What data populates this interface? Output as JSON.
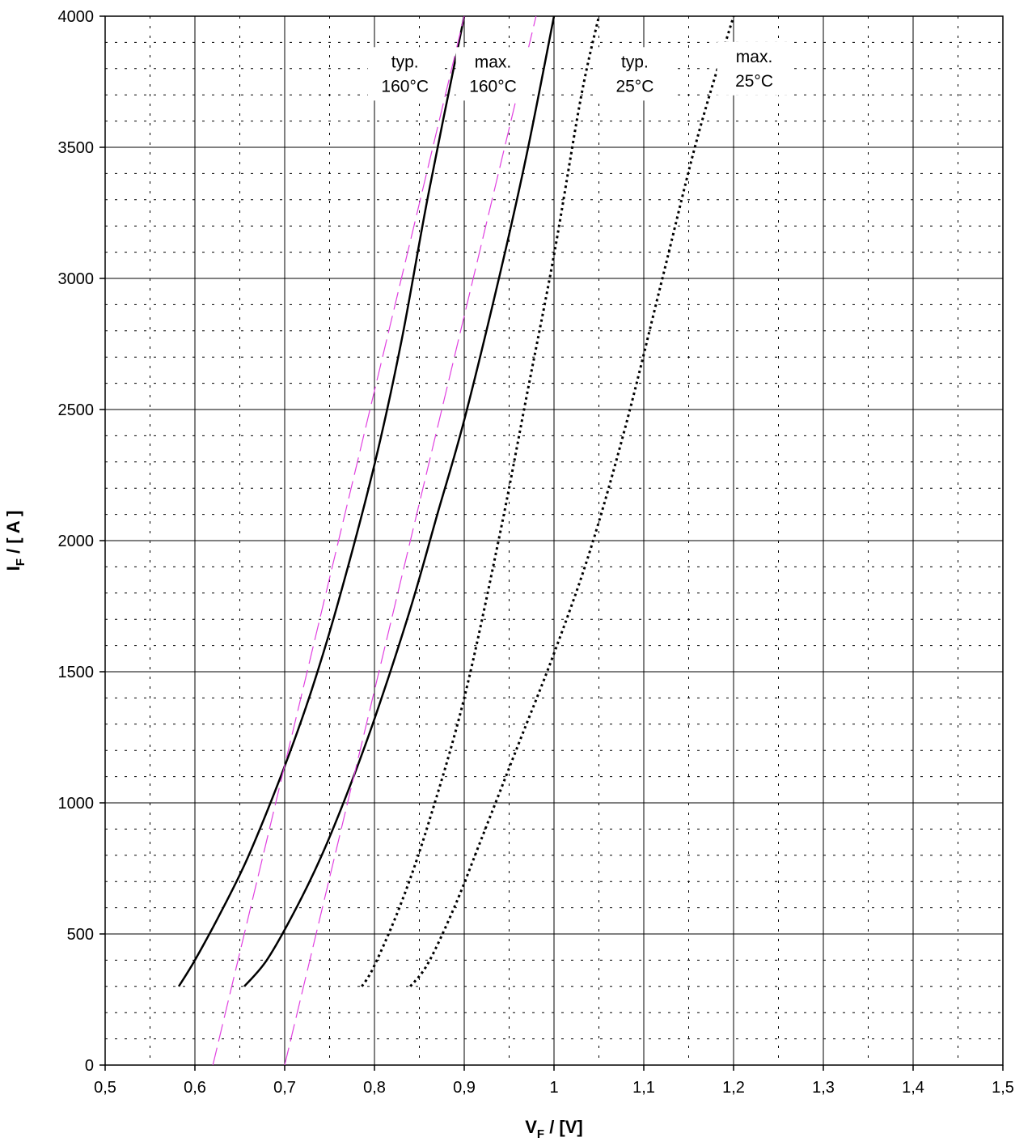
{
  "chart_data": {
    "type": "line",
    "xlabel": {
      "main": "V",
      "sub": "F",
      "rest": " / [V]"
    },
    "ylabel": {
      "main": "I",
      "sub": "F",
      "rest": " / [ A ]"
    },
    "xlim": [
      0.5,
      1.5
    ],
    "ylim": [
      0,
      4000
    ],
    "x_ticks": [
      0.5,
      0.6,
      0.7,
      0.8,
      0.9,
      1.0,
      1.1,
      1.2,
      1.3,
      1.4,
      1.5
    ],
    "x_tick_labels": [
      "0,5",
      "0,6",
      "0,7",
      "0,8",
      "0,9",
      "1",
      "1,1",
      "1,2",
      "1,3",
      "1,4",
      "1,5"
    ],
    "y_ticks": [
      0,
      500,
      1000,
      1500,
      2000,
      2500,
      3000,
      3500,
      4000
    ],
    "y_tick_labels": [
      "0",
      "500",
      "1000",
      "1500",
      "2000",
      "2500",
      "3000",
      "3500",
      "4000"
    ],
    "x_minor_step": 0.05,
    "y_minor_step": 100,
    "grid": true,
    "colors": {
      "solid": "#000000",
      "dotted": "#000000",
      "dashed": "#e040e0",
      "grid": "#000000"
    },
    "series": [
      {
        "style": "solid",
        "x": [
          0.582,
          0.6,
          0.63,
          0.66,
          0.7,
          0.73,
          0.76,
          0.8,
          0.83,
          0.86,
          0.9
        ],
        "y": [
          300,
          400,
          590,
          800,
          1140,
          1430,
          1770,
          2290,
          2760,
          3320,
          4000
        ]
      },
      {
        "style": "solid",
        "x": [
          0.655,
          0.68,
          0.71,
          0.74,
          0.77,
          0.8,
          0.84,
          0.87,
          0.9,
          0.94,
          0.97,
          1.0
        ],
        "y": [
          300,
          400,
          580,
          790,
          1040,
          1320,
          1740,
          2100,
          2460,
          3020,
          3480,
          4000
        ]
      },
      {
        "style": "dotted",
        "x": [
          0.786,
          0.8,
          0.83,
          0.86,
          0.9,
          0.94,
          0.97,
          1.0,
          1.03,
          1.05
        ],
        "y": [
          300,
          380,
          620,
          920,
          1400,
          2030,
          2560,
          3090,
          3690,
          4000
        ]
      },
      {
        "style": "dotted",
        "x": [
          0.84,
          0.86,
          0.89,
          0.92,
          0.96,
          1.0,
          1.04,
          1.08,
          1.12,
          1.16,
          1.2
        ],
        "y": [
          300,
          390,
          610,
          870,
          1220,
          1570,
          1960,
          2440,
          2990,
          3540,
          4000
        ]
      },
      {
        "style": "dashed",
        "x": [
          0.62,
          0.9
        ],
        "y": [
          0,
          4000
        ]
      },
      {
        "style": "dashed",
        "x": [
          0.7,
          0.98
        ],
        "y": [
          0,
          4000
        ]
      }
    ],
    "annotations": [
      {
        "lines": [
          "typ.",
          "160°C"
        ],
        "x": 0.834,
        "y": 3780
      },
      {
        "lines": [
          "max.",
          "160°C"
        ],
        "x": 0.932,
        "y": 3780
      },
      {
        "lines": [
          "typ.",
          "25°C"
        ],
        "x": 1.09,
        "y": 3780
      },
      {
        "lines": [
          "max.",
          "25°C"
        ],
        "x": 1.223,
        "y": 3800
      }
    ]
  }
}
